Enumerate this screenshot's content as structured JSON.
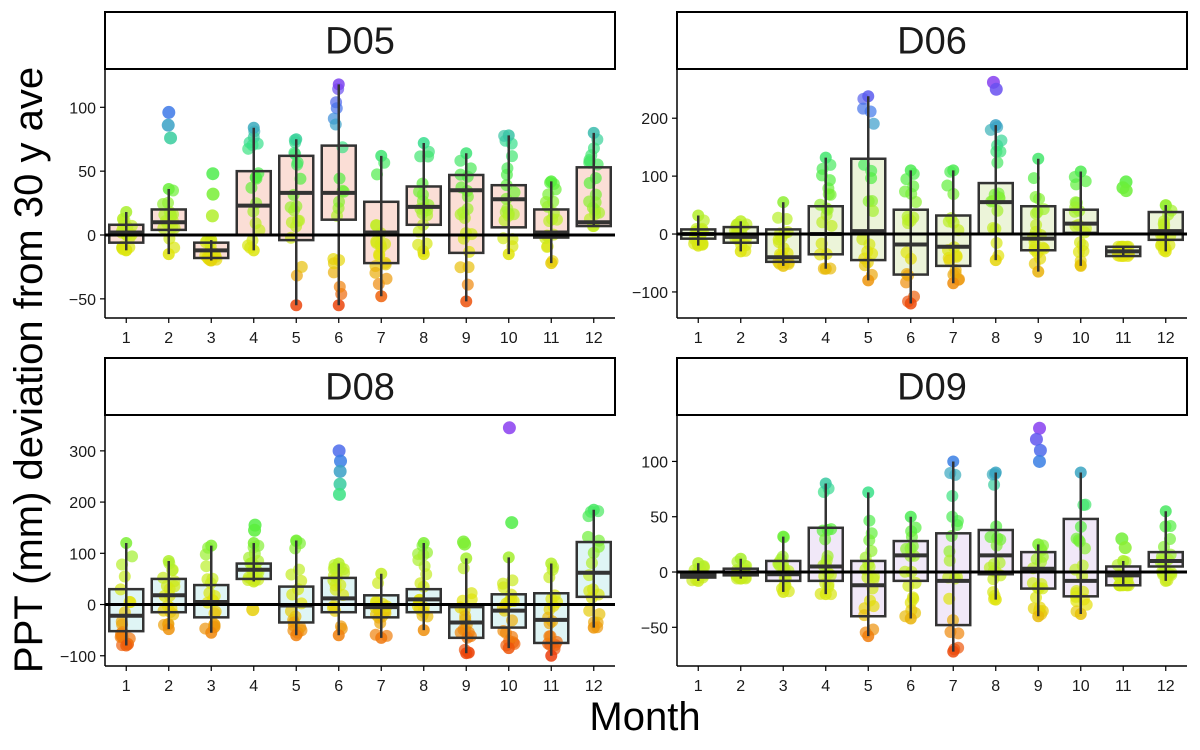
{
  "figure": {
    "xlabel": "Month",
    "ylabel": "PPT (mm) deviation from 30 y ave"
  },
  "colors": {
    "strip_fill": "#ffffff",
    "strip_border": "#000000",
    "box_stroke": "#333333",
    "zero_line": "#000000",
    "point_scale": "deviation mapped low→high: red, orange, yellow, green, blue, purple"
  },
  "chart_data": [
    {
      "type": "boxplot",
      "title": "D05",
      "box_fill": "#f9d3c8",
      "categories": [
        "1",
        "2",
        "3",
        "4",
        "5",
        "6",
        "7",
        "8",
        "9",
        "10",
        "11",
        "12"
      ],
      "ylim": [
        -65,
        130
      ],
      "yticks": [
        -50,
        0,
        50,
        100
      ],
      "ytick_labels": [
        "−50",
        "0",
        "50",
        "100"
      ],
      "zero_line": true,
      "boxes": [
        {
          "month": "1",
          "min": -12,
          "q1": -6,
          "median": 2,
          "q3": 8,
          "max": 18
        },
        {
          "month": "2",
          "min": -15,
          "q1": 4,
          "median": 10,
          "q3": 20,
          "max": 36
        },
        {
          "month": "3",
          "min": -20,
          "q1": -18,
          "median": -12,
          "q3": -6,
          "max": -4
        },
        {
          "month": "4",
          "min": -12,
          "q1": 0,
          "median": 23,
          "q3": 50,
          "max": 84
        },
        {
          "month": "5",
          "min": -55,
          "q1": -4,
          "median": 33,
          "q3": 62,
          "max": 75
        },
        {
          "month": "6",
          "min": -55,
          "q1": 12,
          "median": 33,
          "q3": 70,
          "max": 118
        },
        {
          "month": "7",
          "min": -48,
          "q1": -22,
          "median": 2,
          "q3": 26,
          "max": 62
        },
        {
          "month": "8",
          "min": -15,
          "q1": 8,
          "median": 22,
          "q3": 38,
          "max": 72
        },
        {
          "month": "9",
          "min": -52,
          "q1": -14,
          "median": 35,
          "q3": 47,
          "max": 64
        },
        {
          "month": "10",
          "min": -15,
          "q1": 6,
          "median": 28,
          "q3": 39,
          "max": 78
        },
        {
          "month": "11",
          "min": -22,
          "q1": -2,
          "median": 2,
          "q3": 20,
          "max": 42
        },
        {
          "month": "12",
          "min": 7,
          "q1": 7,
          "median": 10,
          "q3": 53,
          "max": 80
        }
      ],
      "outliers": [
        {
          "month": "2",
          "values": [
            96,
            86,
            76
          ]
        },
        {
          "month": "3",
          "values": [
            48,
            32,
            15
          ]
        }
      ]
    },
    {
      "type": "boxplot",
      "title": "D06",
      "box_fill": "#e6f0cc",
      "categories": [
        "1",
        "2",
        "3",
        "4",
        "5",
        "6",
        "7",
        "8",
        "9",
        "10",
        "11",
        "12"
      ],
      "ylim": [
        -145,
        285
      ],
      "yticks": [
        -100,
        0,
        100,
        200
      ],
      "ytick_labels": [
        "−100",
        "0",
        "100",
        "200"
      ],
      "zero_line": true,
      "boxes": [
        {
          "month": "1",
          "min": -20,
          "q1": -8,
          "median": 0,
          "q3": 8,
          "max": 32
        },
        {
          "month": "2",
          "min": -30,
          "q1": -15,
          "median": -5,
          "q3": 12,
          "max": 22
        },
        {
          "month": "3",
          "min": -55,
          "q1": -48,
          "median": -40,
          "q3": 8,
          "max": 55
        },
        {
          "month": "4",
          "min": -60,
          "q1": -35,
          "median": 0,
          "q3": 48,
          "max": 132
        },
        {
          "month": "5",
          "min": -80,
          "q1": -45,
          "median": 5,
          "q3": 130,
          "max": 238
        },
        {
          "month": "6",
          "min": -120,
          "q1": -70,
          "median": -18,
          "q3": 42,
          "max": 110
        },
        {
          "month": "7",
          "min": -85,
          "q1": -55,
          "median": -22,
          "q3": 32,
          "max": 110
        },
        {
          "month": "8",
          "min": -45,
          "q1": 0,
          "median": 55,
          "q3": 88,
          "max": 188
        },
        {
          "month": "9",
          "min": -65,
          "q1": -28,
          "median": -8,
          "q3": 48,
          "max": 130
        },
        {
          "month": "10",
          "min": -55,
          "q1": 2,
          "median": 18,
          "q3": 42,
          "max": 108
        },
        {
          "month": "11",
          "min": -38,
          "q1": -38,
          "median": -30,
          "q3": -22,
          "max": -22
        },
        {
          "month": "12",
          "min": -30,
          "q1": -10,
          "median": 5,
          "q3": 38,
          "max": 50
        }
      ],
      "outliers": [
        {
          "month": "8",
          "values": [
            262,
            250
          ]
        },
        {
          "month": "11",
          "values": [
            90,
            80,
            75
          ]
        }
      ]
    },
    {
      "type": "boxplot",
      "title": "D08",
      "box_fill": "#d4f2f2",
      "categories": [
        "1",
        "2",
        "3",
        "4",
        "5",
        "6",
        "7",
        "8",
        "9",
        "10",
        "11",
        "12"
      ],
      "ylim": [
        -120,
        370
      ],
      "yticks": [
        -100,
        0,
        100,
        200,
        300
      ],
      "ytick_labels": [
        "−100",
        "0",
        "100",
        "200",
        "300"
      ],
      "zero_line": true,
      "boxes": [
        {
          "month": "1",
          "min": -80,
          "q1": -52,
          "median": -22,
          "q3": 30,
          "max": 120
        },
        {
          "month": "2",
          "min": -48,
          "q1": -15,
          "median": 18,
          "q3": 50,
          "max": 85
        },
        {
          "month": "3",
          "min": -55,
          "q1": -25,
          "median": 5,
          "q3": 38,
          "max": 115
        },
        {
          "month": "4",
          "min": 45,
          "q1": 50,
          "median": 68,
          "q3": 80,
          "max": 120
        },
        {
          "month": "5",
          "min": -60,
          "q1": -35,
          "median": -2,
          "q3": 35,
          "max": 125
        },
        {
          "month": "6",
          "min": -60,
          "q1": -15,
          "median": 12,
          "q3": 52,
          "max": 80
        },
        {
          "month": "7",
          "min": -65,
          "q1": -25,
          "median": -5,
          "q3": 18,
          "max": 60
        },
        {
          "month": "8",
          "min": -50,
          "q1": -15,
          "median": 10,
          "q3": 30,
          "max": 120
        },
        {
          "month": "9",
          "min": -95,
          "q1": -65,
          "median": -35,
          "q3": -5,
          "max": 90
        },
        {
          "month": "10",
          "min": -85,
          "q1": -45,
          "median": -12,
          "q3": 20,
          "max": 92
        },
        {
          "month": "11",
          "min": -100,
          "q1": -75,
          "median": -30,
          "q3": 22,
          "max": 80
        },
        {
          "month": "12",
          "min": -45,
          "q1": 15,
          "median": 62,
          "q3": 122,
          "max": 185
        }
      ],
      "outliers": [
        {
          "month": "4",
          "values": [
            -10,
            155,
            145
          ]
        },
        {
          "month": "6",
          "values": [
            300,
            280,
            260,
            235,
            215
          ]
        },
        {
          "month": "9",
          "values": [
            122,
            118
          ]
        },
        {
          "month": "10",
          "values": [
            345,
            160
          ]
        }
      ]
    },
    {
      "type": "boxplot",
      "title": "D09",
      "box_fill": "#ece0f6",
      "categories": [
        "1",
        "2",
        "3",
        "4",
        "5",
        "6",
        "7",
        "8",
        "9",
        "10",
        "11",
        "12"
      ],
      "ylim": [
        -85,
        142
      ],
      "yticks": [
        -50,
        0,
        50,
        100
      ],
      "ytick_labels": [
        "−50",
        "0",
        "50",
        "100"
      ],
      "zero_line": true,
      "boxes": [
        {
          "month": "1",
          "min": -8,
          "q1": -5,
          "median": -3,
          "q3": 0,
          "max": 8
        },
        {
          "month": "2",
          "min": -6,
          "q1": -3,
          "median": -1,
          "q3": 3,
          "max": 12
        },
        {
          "month": "3",
          "min": -18,
          "q1": -8,
          "median": -2,
          "q3": 10,
          "max": 32
        },
        {
          "month": "4",
          "min": -20,
          "q1": -8,
          "median": 5,
          "q3": 40,
          "max": 80
        },
        {
          "month": "5",
          "min": -58,
          "q1": -40,
          "median": -12,
          "q3": 10,
          "max": 72
        },
        {
          "month": "6",
          "min": -42,
          "q1": -8,
          "median": 15,
          "q3": 28,
          "max": 50
        },
        {
          "month": "7",
          "min": -72,
          "q1": -48,
          "median": -8,
          "q3": 35,
          "max": 100
        },
        {
          "month": "8",
          "min": -25,
          "q1": -2,
          "median": 15,
          "q3": 38,
          "max": 90
        },
        {
          "month": "9",
          "min": -40,
          "q1": -15,
          "median": 3,
          "q3": 18,
          "max": 25
        },
        {
          "month": "10",
          "min": -38,
          "q1": -22,
          "median": -8,
          "q3": 48,
          "max": 90
        },
        {
          "month": "11",
          "min": -12,
          "q1": -12,
          "median": -3,
          "q3": 5,
          "max": 10
        },
        {
          "month": "12",
          "min": -8,
          "q1": 5,
          "median": 10,
          "q3": 18,
          "max": 55
        }
      ],
      "outliers": [
        {
          "month": "9",
          "values": [
            130,
            120,
            110,
            100
          ]
        },
        {
          "month": "11",
          "values": [
            30,
            22
          ]
        }
      ]
    }
  ]
}
